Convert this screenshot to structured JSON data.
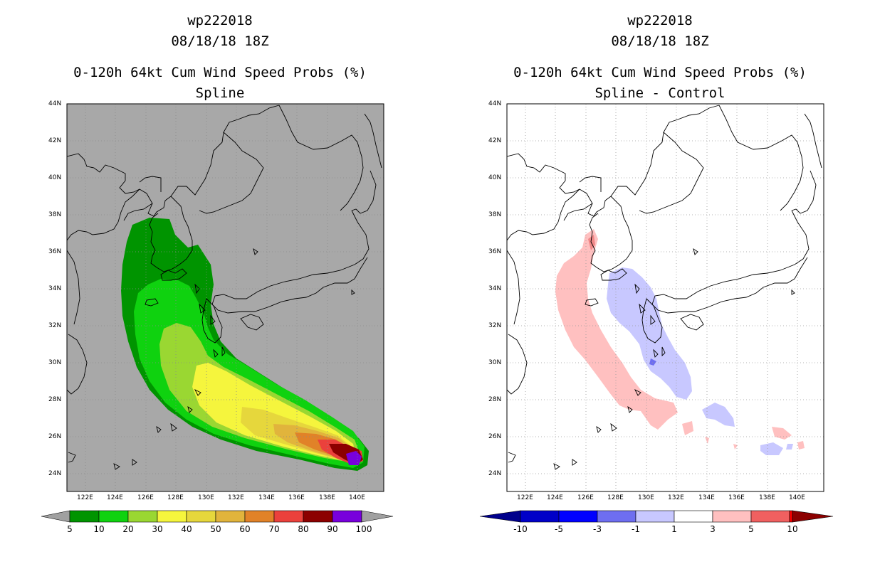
{
  "left_panel": {
    "storm_id": "wp222018",
    "datetime": "08/18/18 18Z",
    "product": "0-120h 64kt Cum Wind Speed Probs (%)",
    "subtitle": "Spline",
    "colorbar": {
      "labels": [
        "5",
        "10",
        "20",
        "30",
        "40",
        "50",
        "60",
        "70",
        "80",
        "90",
        "100"
      ],
      "colors": [
        "#009400",
        "#0fd20f",
        "#9ad732",
        "#f5f53d",
        "#e6d73c",
        "#e1b43c",
        "#e18228",
        "#eb413c",
        "#8c0000",
        "#7800dc"
      ],
      "extend_color": "#a0a0a0"
    },
    "background": "#a8a8a8"
  },
  "right_panel": {
    "storm_id": "wp222018",
    "datetime": "08/18/18 18Z",
    "product": "0-120h 64kt Cum Wind Speed Probs (%)",
    "subtitle": "Spline - Control",
    "colorbar": {
      "labels": [
        "-10",
        "-5",
        "-3",
        "-1",
        "1",
        "3",
        "5",
        "10"
      ],
      "colors": [
        "#0000c8",
        "#0000ff",
        "#6e6ef0",
        "#c8c8ff",
        "#ffffff",
        "#ffc0c0",
        "#f06060",
        "#ff0000"
      ],
      "low_extend": "#00008c",
      "high_extend": "#8c0000"
    },
    "background": "#ffffff"
  },
  "axes": {
    "lat_labels": [
      "44N",
      "42N",
      "40N",
      "38N",
      "36N",
      "34N",
      "32N",
      "30N",
      "28N",
      "26N",
      "24N"
    ],
    "lon_labels": [
      "122E",
      "124E",
      "126E",
      "128E",
      "130E",
      "132E",
      "134E",
      "136E",
      "138E",
      "140E"
    ],
    "lon_range": [
      121,
      142
    ],
    "lat_range": [
      23,
      44
    ]
  }
}
